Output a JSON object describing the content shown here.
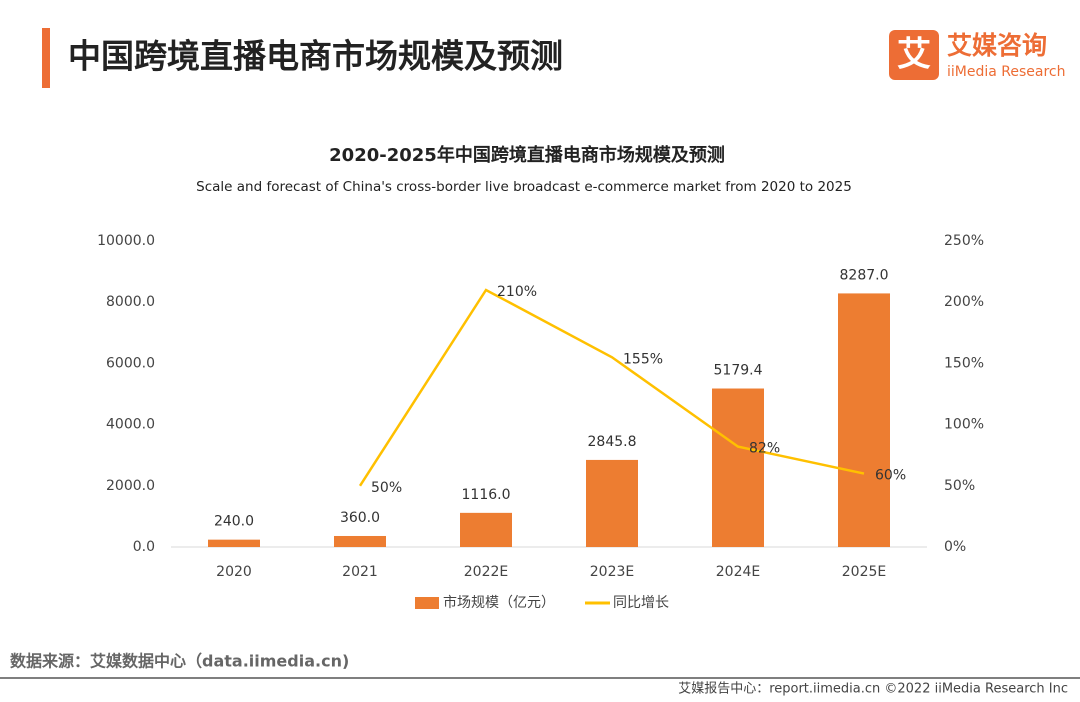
{
  "header": {
    "title": "中国跨境直播电商市场规模及预测",
    "logo_mark": "艾",
    "logo_name": "艾媒咨询",
    "logo_sub": "iiMedia Research"
  },
  "chart_data": {
    "type": "bar",
    "title": "2020-2025年中国跨境直播电商市场规模及预测",
    "subtitle": "Scale and forecast of China's cross-border live broadcast e-commerce market from 2020 to 2025",
    "categories": [
      "2020",
      "2021",
      "2022E",
      "2023E",
      "2024E",
      "2025E"
    ],
    "series": [
      {
        "name": "市场规模（亿元）",
        "type": "bar",
        "color": "#ed7d31",
        "values": [
          240.0,
          360.0,
          1116.0,
          2845.8,
          5179.4,
          8287.0
        ],
        "value_labels": [
          "240.0",
          "360.0",
          "1116.0",
          "2845.8",
          "5179.4",
          "8287.0"
        ]
      },
      {
        "name": "同比增长",
        "type": "line",
        "axis": "y2",
        "color": "#ffc000",
        "values": [
          null,
          50,
          210,
          155,
          82,
          60
        ],
        "value_labels": [
          null,
          "50%",
          "210%",
          "155%",
          "82%",
          "60%"
        ]
      }
    ],
    "ylim": [
      0,
      10000
    ],
    "yticks": [
      {
        "value": 0,
        "label": "0.0"
      },
      {
        "value": 2000,
        "label": "2000.0"
      },
      {
        "value": 4000,
        "label": "4000.0"
      },
      {
        "value": 6000,
        "label": "6000.0"
      },
      {
        "value": 8000,
        "label": "8000.0"
      },
      {
        "value": 10000,
        "label": "10000.0"
      }
    ],
    "y2lim": [
      0,
      250
    ],
    "y2ticks": [
      {
        "value": 0,
        "label": "0%"
      },
      {
        "value": 50,
        "label": "50%"
      },
      {
        "value": 100,
        "label": "100%"
      },
      {
        "value": 150,
        "label": "150%"
      },
      {
        "value": 200,
        "label": "200%"
      },
      {
        "value": 250,
        "label": "250%"
      }
    ],
    "grid": false,
    "legend": "bottom"
  },
  "footer": {
    "source": "数据来源：艾媒数据中心（data.iimedia.cn)",
    "credit": "艾媒报告中心：report.iimedia.cn  ©2022  iiMedia Research  Inc"
  }
}
